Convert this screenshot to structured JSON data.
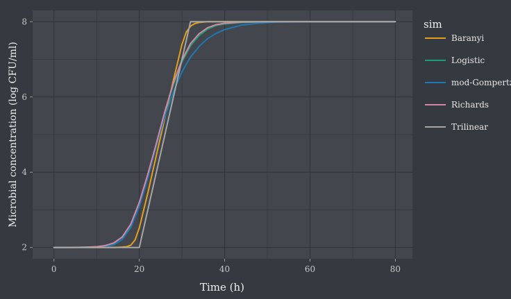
{
  "chart_data": {
    "type": "line",
    "title": "",
    "xlabel": "Time (h)",
    "ylabel": "Microbial concentration (log CFU/ml)",
    "xlim": [
      -5,
      84
    ],
    "ylim": [
      1.7,
      8.3
    ],
    "x_ticks": [
      0,
      20,
      40,
      60,
      80
    ],
    "y_ticks": [
      2,
      4,
      6,
      8
    ],
    "grid": true,
    "legend": {
      "title": "sim",
      "position": "right",
      "entries": [
        "Baranyi",
        "Logistic",
        "mod-Gompertz",
        "Richards",
        "Trilinear"
      ]
    },
    "colors": {
      "background": "#353940",
      "panel": "#43474d",
      "grid": "#31353b",
      "text": "#e6e6e6",
      "tick_text": "#c8c8c8"
    },
    "series": [
      {
        "name": "Baranyi",
        "color": "#e5a01b",
        "x": [
          0,
          4,
          8,
          12,
          14,
          16,
          17,
          18,
          19,
          20,
          22,
          24,
          26,
          28,
          30,
          31,
          32,
          33,
          34,
          36,
          38,
          40,
          44,
          50,
          60,
          70,
          80
        ],
        "y": [
          2.0,
          2.0,
          2.0,
          2.0,
          2.0,
          2.01,
          2.02,
          2.06,
          2.2,
          2.52,
          3.45,
          4.45,
          5.45,
          6.45,
          7.4,
          7.72,
          7.88,
          7.95,
          7.98,
          8.0,
          8.0,
          8.0,
          8.0,
          8.0,
          8.0,
          8.0,
          8.0
        ]
      },
      {
        "name": "Logistic",
        "color": "#1b9e77",
        "x": [
          0,
          4,
          8,
          10,
          12,
          14,
          16,
          18,
          20,
          22,
          24,
          26,
          28,
          30,
          32,
          34,
          36,
          38,
          40,
          44,
          50,
          60,
          70,
          80
        ],
        "y": [
          2.0,
          2.0,
          2.01,
          2.02,
          2.05,
          2.11,
          2.27,
          2.6,
          3.17,
          3.92,
          4.75,
          5.6,
          6.33,
          6.93,
          7.36,
          7.63,
          7.8,
          7.9,
          7.94,
          7.98,
          8.0,
          8.0,
          8.0,
          8.0
        ]
      },
      {
        "name": "mod-Gompertz",
        "color": "#1f78b4",
        "x": [
          0,
          4,
          8,
          12,
          14,
          16,
          18,
          20,
          22,
          24,
          26,
          28,
          30,
          32,
          34,
          36,
          38,
          40,
          44,
          48,
          52,
          60,
          70,
          80
        ],
        "y": [
          2.0,
          2.0,
          2.0,
          2.02,
          2.07,
          2.21,
          2.53,
          3.09,
          3.85,
          4.7,
          5.48,
          6.14,
          6.67,
          7.06,
          7.34,
          7.55,
          7.69,
          7.79,
          7.91,
          7.96,
          7.99,
          8.0,
          8.0,
          8.0
        ]
      },
      {
        "name": "Richards",
        "color": "#d487a6",
        "x": [
          0,
          4,
          8,
          10,
          12,
          14,
          16,
          18,
          20,
          22,
          24,
          26,
          28,
          30,
          32,
          34,
          36,
          38,
          40,
          44,
          50,
          60,
          70,
          80
        ],
        "y": [
          2.0,
          2.0,
          2.01,
          2.02,
          2.05,
          2.12,
          2.28,
          2.62,
          3.2,
          3.95,
          4.77,
          5.62,
          6.38,
          6.98,
          7.42,
          7.68,
          7.84,
          7.92,
          7.96,
          7.99,
          8.0,
          8.0,
          8.0,
          8.0
        ]
      },
      {
        "name": "Trilinear",
        "color": "#a6a6a6",
        "x": [
          0,
          20,
          32,
          80
        ],
        "y": [
          2.0,
          2.0,
          8.0,
          8.0
        ]
      }
    ]
  }
}
